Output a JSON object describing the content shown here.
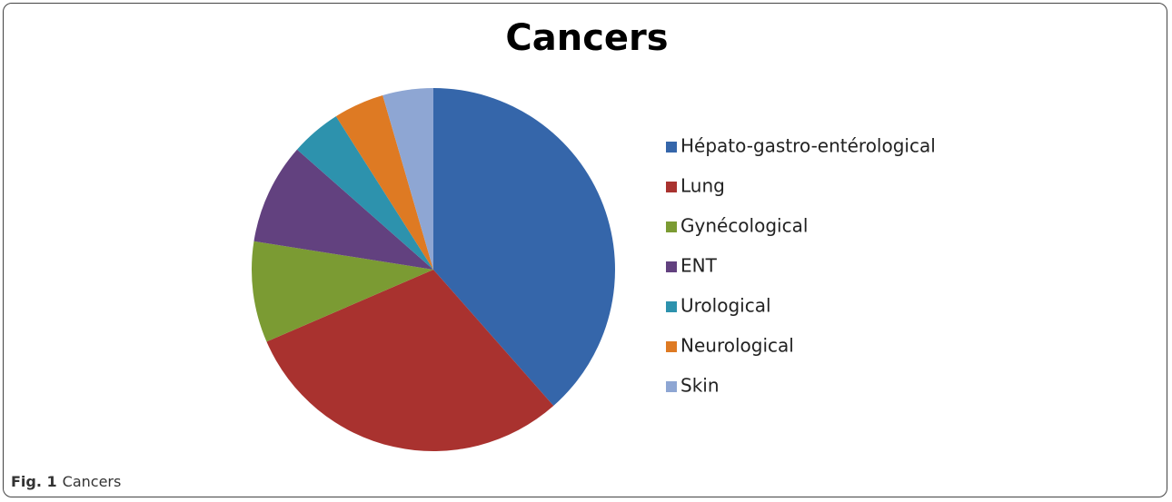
{
  "chart_data": {
    "type": "pie",
    "title": "Cancers",
    "categories": [
      "Hépato-gastro-entérological",
      "Lung",
      "Gynécological",
      "ENT",
      "Urological",
      "Neurological",
      "Skin"
    ],
    "values": [
      38.5,
      30,
      9,
      9,
      4.5,
      4.5,
      4.5
    ],
    "colors": [
      "#3566aa",
      "#a9322f",
      "#7b9b33",
      "#62417f",
      "#2d92ad",
      "#de7a23",
      "#8ea6d3"
    ],
    "legend": "right"
  },
  "caption": {
    "label": "Fig. 1",
    "text": "Cancers"
  }
}
